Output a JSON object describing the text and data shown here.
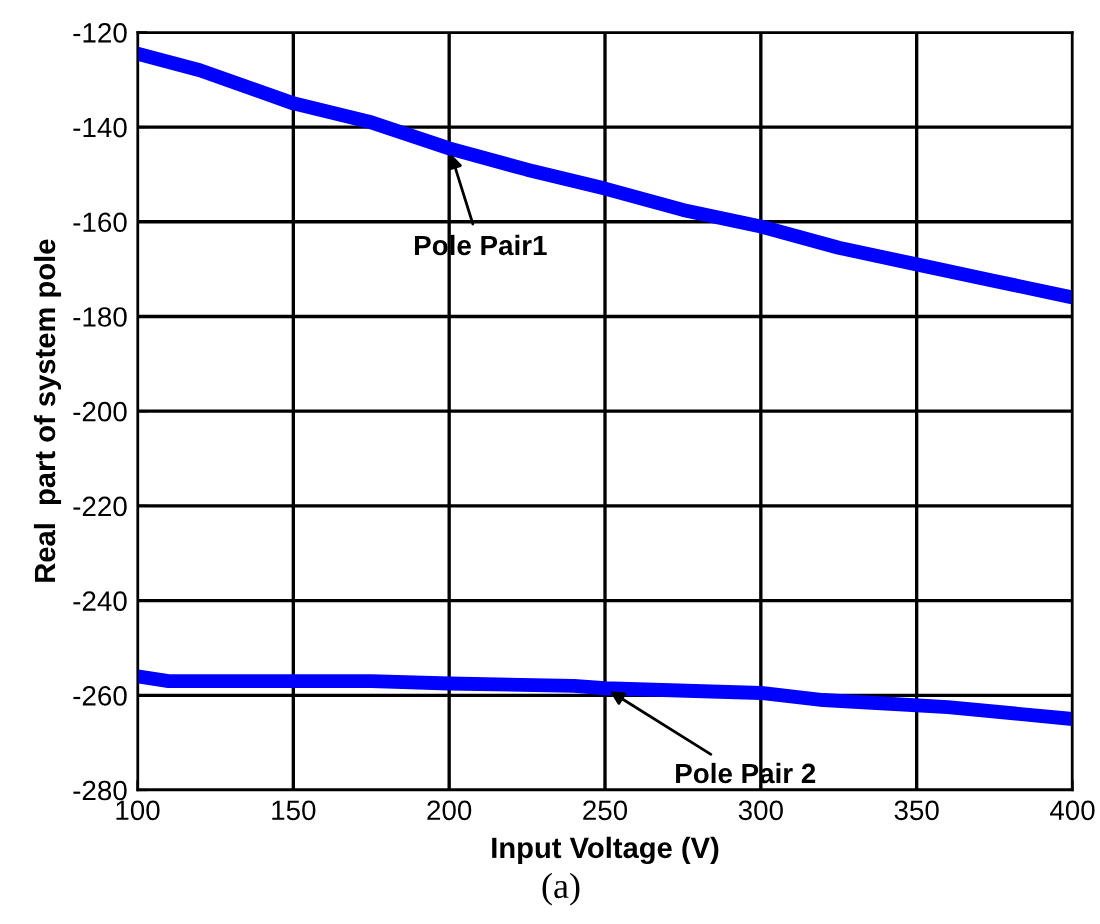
{
  "chart_data": {
    "type": "line",
    "xlabel": "Input Voltage (V)",
    "ylabel": "Real  part of system pole",
    "xlim": [
      100,
      400
    ],
    "xticks": [
      100,
      150,
      200,
      250,
      300,
      350,
      400
    ],
    "ylim": [
      -280,
      -120
    ],
    "yticks": [
      -280,
      -260,
      -240,
      -220,
      -200,
      -180,
      -160,
      -140,
      -120
    ],
    "grid": true,
    "legend": false,
    "series": [
      {
        "color": "#0000ff",
        "x": [
          100,
          120,
          150,
          175,
          200,
          225,
          250,
          275,
          300,
          325,
          350,
          375,
          400
        ],
        "values": [
          -124.5,
          -128,
          -135,
          -139,
          -144.5,
          -149,
          -153,
          -157.5,
          -161,
          -165.5,
          -169,
          -172.5,
          -176
        ]
      },
      {
        "color": "#0000ff",
        "x": [
          100,
          110,
          175,
          200,
          240,
          250,
          300,
          320,
          360,
          400
        ],
        "values": [
          -256,
          -257,
          -257,
          -257.5,
          -258,
          -258.5,
          -259.5,
          -261,
          -262.5,
          -265
        ]
      }
    ],
    "annotations": [
      {
        "text": "Pole Pair1",
        "x": 200,
        "y": -144.5
      },
      {
        "text": "Pole Pair 2",
        "x": 250,
        "y": -258.5
      },
      "(a)"
    ]
  }
}
